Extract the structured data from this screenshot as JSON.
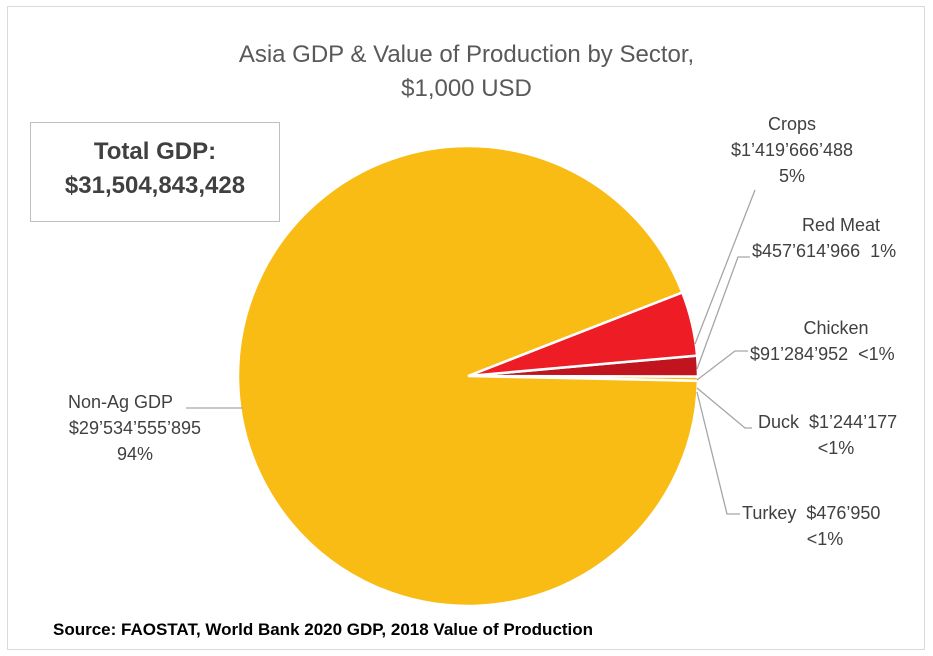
{
  "chart_data": {
    "type": "pie",
    "title": "Asia GDP & Value of Production by Sector,",
    "subtitle": "$1,000 USD",
    "slices": [
      {
        "name": "Non-Ag GDP",
        "label_value": "$29’534’555’895",
        "pct_label": "94%",
        "value": 29534555895,
        "color": "#F8BC14"
      },
      {
        "name": "Crops",
        "label_value": "$1’419’666’488",
        "pct_label": "5%",
        "value": 1419666488,
        "color": "#EE1C25"
      },
      {
        "name": "Red Meat",
        "label_value": "$457’614’966",
        "pct_label": "1%",
        "value": 457614966,
        "color": "#C0151E"
      },
      {
        "name": "Chicken",
        "label_value": "$91’284’952",
        "pct_label": "<1%",
        "value": 91284952,
        "color": "#F8BC14"
      },
      {
        "name": "Duck",
        "label_value": "$1’244’177",
        "pct_label": "<1%",
        "value": 1244177,
        "color": "#F8BC14"
      },
      {
        "name": "Turkey",
        "label_value": "$476’950",
        "pct_label": "<1%",
        "value": 476950,
        "color": "#F8BC14"
      }
    ]
  },
  "total_box": {
    "label": "Total GDP:",
    "value": "$31,504,843,428"
  },
  "source": "Source: FAOSTAT, World Bank 2020 GDP, 2018 Value of Production"
}
